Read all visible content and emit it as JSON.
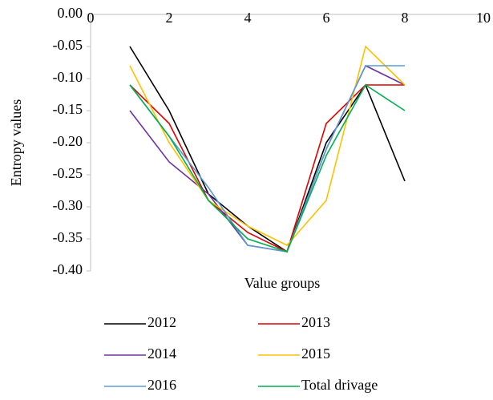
{
  "chart_data": {
    "type": "line",
    "x_label": "Value groups",
    "y_label": "Entropy values",
    "x": [
      1,
      2,
      3,
      4,
      5,
      6,
      7,
      8
    ],
    "xlim": [
      0,
      10
    ],
    "xticks": [
      0,
      2,
      4,
      6,
      8,
      10
    ],
    "ylim": [
      -0.4,
      0
    ],
    "yticks": [
      {
        "value": 0,
        "label": "0.00"
      },
      -0.05,
      {
        "value": -0.1,
        "label": "-0.10"
      },
      -0.15,
      {
        "value": -0.2,
        "label": "-0.20"
      },
      -0.25,
      {
        "value": -0.3,
        "label": "-0.30"
      },
      -0.35,
      {
        "value": -0.4,
        "label": "-0.40"
      }
    ],
    "grid": false,
    "legend": "bottom",
    "series": [
      {
        "name": "2012",
        "color": "#000000",
        "values": [
          -0.05,
          -0.15,
          -0.28,
          -0.33,
          -0.37,
          -0.2,
          -0.11,
          -0.26
        ]
      },
      {
        "name": "2013",
        "color": "#e00000",
        "values": [
          -0.11,
          -0.17,
          -0.29,
          -0.34,
          -0.37,
          -0.17,
          -0.11,
          -0.11
        ]
      },
      {
        "name": "2014",
        "color": "#7030a0",
        "values": [
          -0.15,
          -0.23,
          -0.28,
          -0.36,
          -0.37,
          -0.21,
          -0.08,
          -0.11
        ]
      },
      {
        "name": "2015",
        "color": "#ffc000",
        "values": [
          -0.08,
          -0.2,
          -0.29,
          -0.33,
          -0.36,
          -0.29,
          -0.05,
          -0.11
        ]
      },
      {
        "name": "2016",
        "color": "#5b9bd5",
        "values": [
          -0.11,
          -0.19,
          -0.27,
          -0.36,
          -0.37,
          -0.21,
          -0.08,
          -0.08
        ]
      },
      {
        "name": "Total drivage",
        "color": "#00b050",
        "values": [
          -0.11,
          -0.19,
          -0.29,
          -0.35,
          -0.37,
          -0.22,
          -0.11,
          -0.15
        ]
      }
    ]
  }
}
